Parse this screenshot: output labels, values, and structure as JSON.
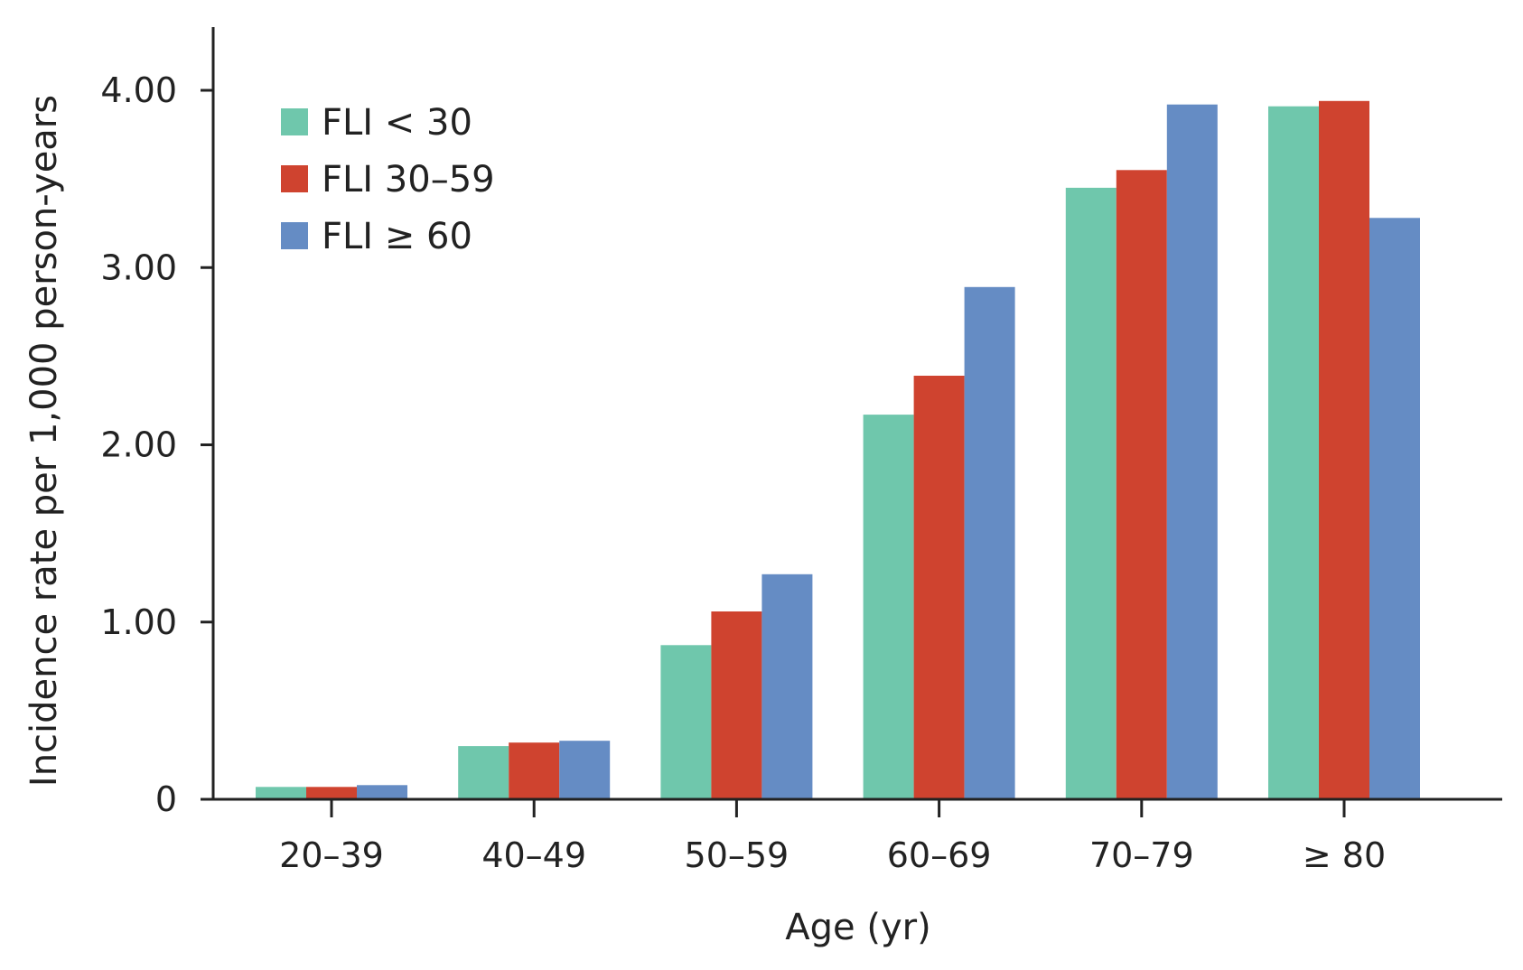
{
  "chart_data": {
    "type": "bar",
    "title": "",
    "xlabel": "Age (yr)",
    "ylabel": "Incidence rate per 1,000 person-years",
    "categories": [
      "20–39",
      "40–49",
      "50–59",
      "60–69",
      "70–79",
      "≥ 80"
    ],
    "series": [
      {
        "name": "FLI < 30",
        "color": "#6fc7ac",
        "values": [
          0.07,
          0.3,
          0.87,
          2.17,
          3.45,
          3.91
        ]
      },
      {
        "name": "FLI 30–59",
        "color": "#cf432f",
        "values": [
          0.07,
          0.32,
          1.06,
          2.39,
          3.55,
          3.94
        ]
      },
      {
        "name": "FLI ≥ 60",
        "color": "#658cc4",
        "values": [
          0.08,
          0.33,
          1.27,
          2.89,
          3.92,
          3.28
        ]
      }
    ],
    "yticks": [
      "0",
      "1.00",
      "2.00",
      "3.00",
      "4.00"
    ],
    "ytick_values": [
      0,
      1,
      2,
      3,
      4
    ],
    "ylim": [
      0,
      4.35
    ],
    "grid": false,
    "legend_position": "top-left"
  }
}
